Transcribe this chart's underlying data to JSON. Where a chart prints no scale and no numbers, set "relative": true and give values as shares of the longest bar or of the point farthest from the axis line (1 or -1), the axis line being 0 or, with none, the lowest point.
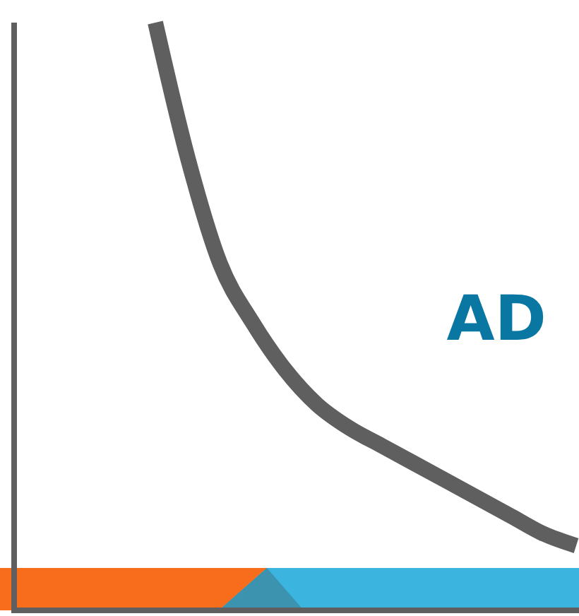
{
  "chart_data": {
    "type": "line",
    "relative": true,
    "grid": false,
    "legend": false,
    "marker": "none",
    "line_style": "solid",
    "categories": [
      null,
      null,
      null,
      null,
      null,
      null,
      null,
      null,
      null,
      null,
      null,
      null,
      null,
      null
    ],
    "series": [
      {
        "name": "AD",
        "color": "#5f5f5f",
        "values": [
          1.0,
          0.77,
          0.59,
          0.49,
          0.41,
          0.35,
          0.31,
          0.28,
          0.25,
          0.22,
          0.19,
          0.16,
          0.13,
          0.11
        ]
      }
    ]
  }
}
